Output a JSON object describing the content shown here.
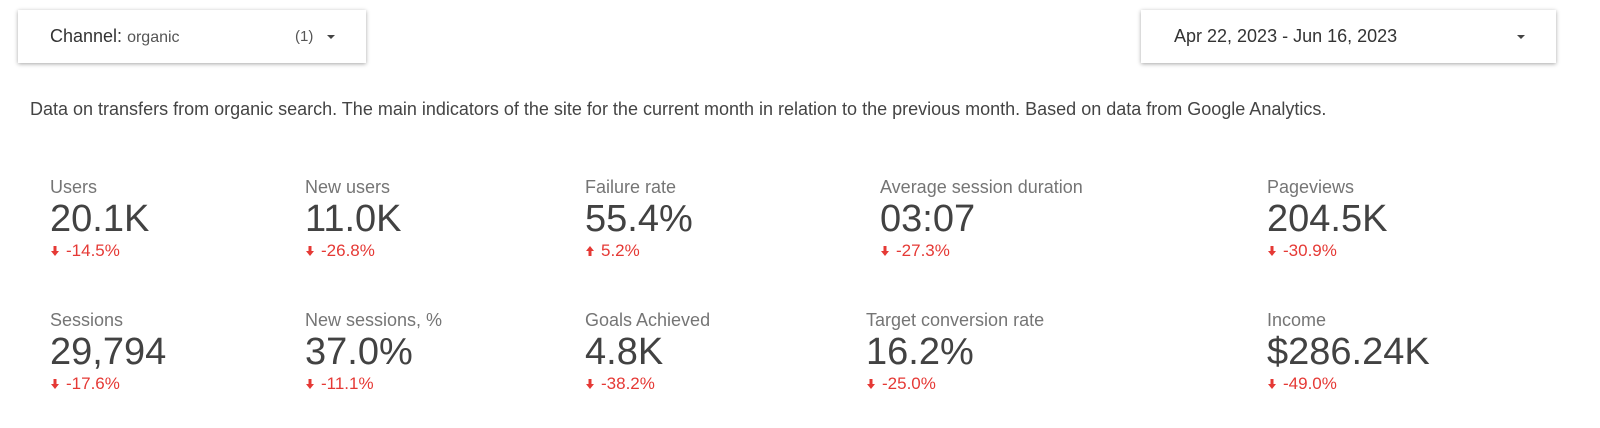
{
  "filter": {
    "label": "Channel:",
    "value": "organic",
    "count": "(1)"
  },
  "date_range": "Apr 22, 2023 - Jun 16, 2023",
  "description": "Data on transfers from organic search. The main indicators of the site for the current month in relation to the previous month. Based on data from Google Analytics.",
  "scorecards": [
    [
      {
        "label": "Users",
        "value": "20.1K",
        "change": "-14.5%",
        "trend": "down"
      },
      {
        "label": "New users",
        "value": "11.0K",
        "change": "-26.8%",
        "trend": "down"
      },
      {
        "label": "Failure rate",
        "value": "55.4%",
        "change": "5.2%",
        "trend": "up"
      },
      {
        "label": "Average session duration",
        "value": "03:07",
        "change": "-27.3%",
        "trend": "down"
      },
      {
        "label": "Pageviews",
        "value": "204.5K",
        "change": "-30.9%",
        "trend": "down"
      }
    ],
    [
      {
        "label": "Sessions",
        "value": "29,794",
        "change": "-17.6%",
        "trend": "down"
      },
      {
        "label": "New sessions, %",
        "value": "37.0%",
        "change": "-11.1%",
        "trend": "down"
      },
      {
        "label": "Goals Achieved",
        "value": "4.8K",
        "change": "-38.2%",
        "trend": "down"
      },
      {
        "label": "Target conversion rate",
        "value": "16.2%",
        "change": "-25.0%",
        "trend": "down"
      },
      {
        "label": "Income",
        "value": "$286.24K",
        "change": "-49.0%",
        "trend": "down"
      }
    ]
  ]
}
